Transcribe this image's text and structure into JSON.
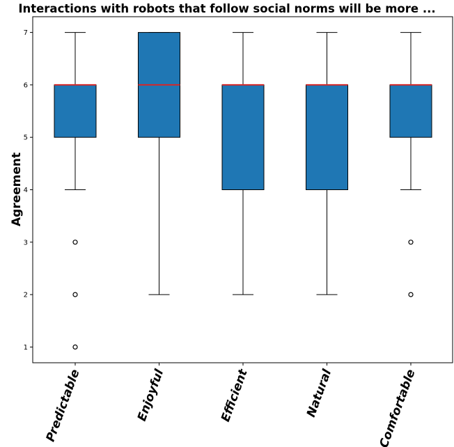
{
  "chart_data": {
    "type": "box",
    "title": "Interactions with robots that follow social norms will be more ...",
    "xlabel": "",
    "ylabel": "Agreement",
    "ylim": [
      0.7,
      7.3
    ],
    "yticks": [
      1,
      2,
      3,
      4,
      5,
      6,
      7
    ],
    "categories": [
      "Predictable",
      "Enjoyful",
      "Efficient",
      "Natural",
      "Comfortable"
    ],
    "boxes": [
      {
        "category": "Predictable",
        "whisker_low": 4,
        "q1": 5,
        "median": 6,
        "q3": 6,
        "whisker_high": 7,
        "outliers": [
          3,
          2,
          1
        ]
      },
      {
        "category": "Enjoyful",
        "whisker_low": 2,
        "q1": 5,
        "median": 6,
        "q3": 7,
        "whisker_high": 7,
        "outliers": []
      },
      {
        "category": "Efficient",
        "whisker_low": 2,
        "q1": 4,
        "median": 6,
        "q3": 6,
        "whisker_high": 7,
        "outliers": []
      },
      {
        "category": "Natural",
        "whisker_low": 2,
        "q1": 4,
        "median": 6,
        "q3": 6,
        "whisker_high": 7,
        "outliers": []
      },
      {
        "category": "Comfortable",
        "whisker_low": 4,
        "q1": 5,
        "median": 6,
        "q3": 6,
        "whisker_high": 7,
        "outliers": [
          3,
          2
        ]
      }
    ],
    "colors": {
      "box_fill": "#1f77b4",
      "median": "#d62728",
      "edge": "#000000"
    },
    "grid": false
  }
}
